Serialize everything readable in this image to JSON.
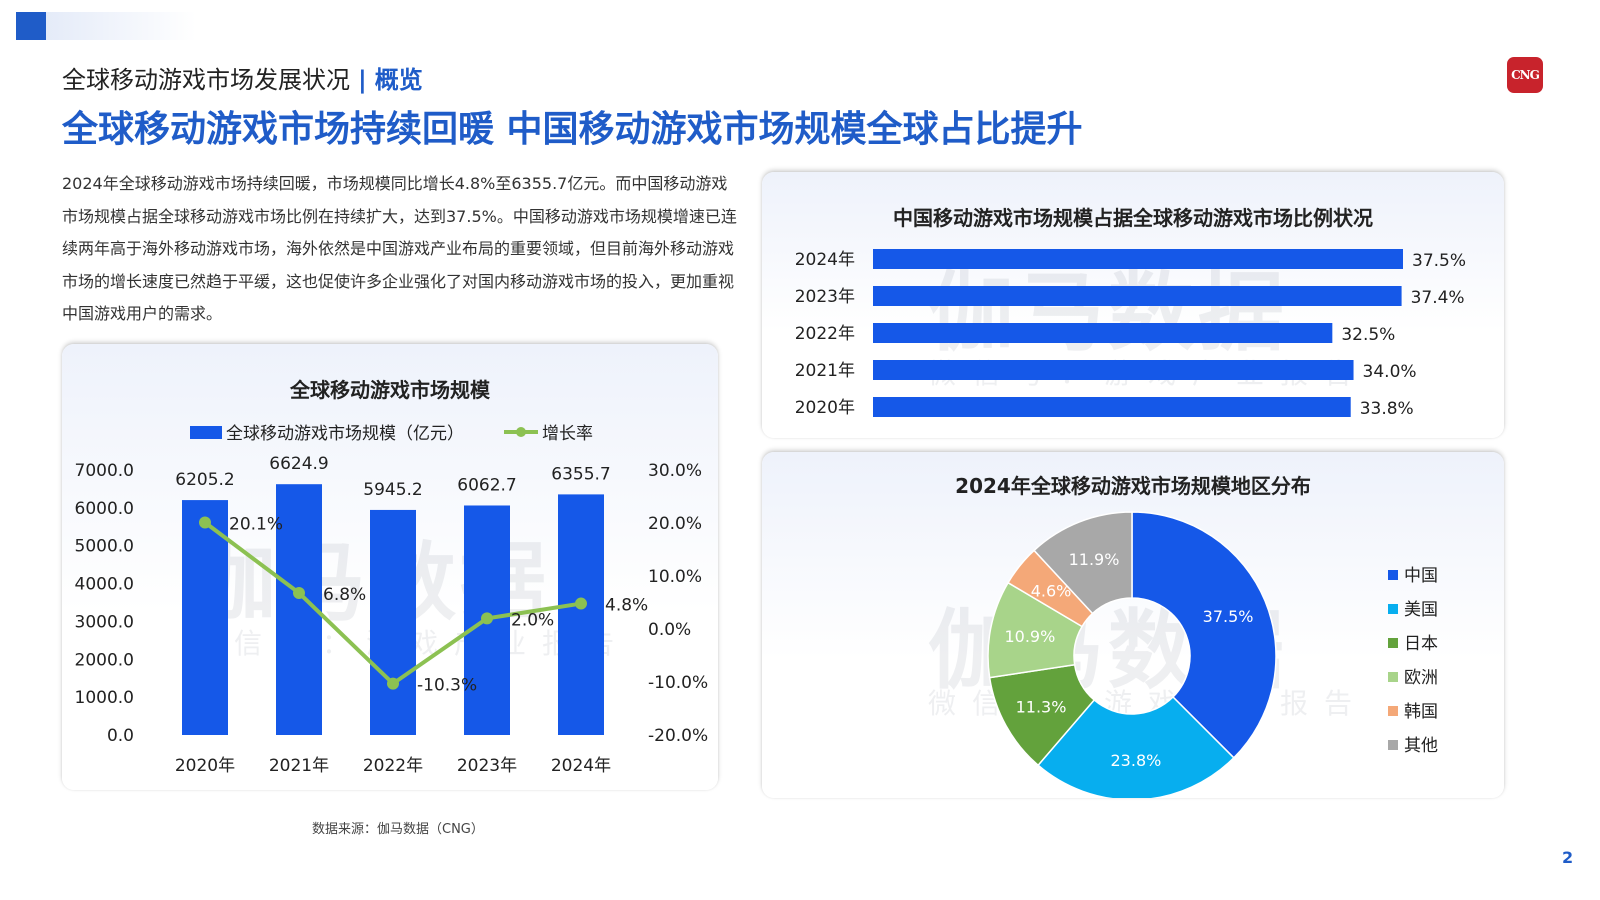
{
  "section": {
    "title": "全球移动游戏市场发展状况",
    "separator": "|",
    "subtitle": "概览"
  },
  "logo": {
    "text": "CNG"
  },
  "headline": "全球移动游戏市场持续回暖 中国移动游戏市场规模全球占比提升",
  "intro": "2024年全球移动游戏市场持续回暖，市场规模同比增长4.8%至6355.7亿元。而中国移动游戏市场规模占据全球移动游戏市场比例在持续扩大，达到37.5%。中国移动游戏市场规模增速已连续两年高于海外移动游戏市场，海外依然是中国游戏产业布局的重要领域，但目前海外移动游戏市场的增长速度已然趋于平缓，这也促使许多企业强化了对国内移动游戏市场的投入，更加重视中国游戏用户的需求。",
  "watermark": {
    "main": "伽马数据",
    "sub": "微信号：游戏产业报告"
  },
  "source": "数据来源：伽马数据（CNG）",
  "page_number": "2",
  "colors": {
    "bar_blue": "#1558e8",
    "line_green": "#8cc152",
    "accent": "#1f5cc8",
    "pie": [
      "#1558e8",
      "#07aeef",
      "#63a23c",
      "#a8d48a",
      "#f4a878",
      "#a8a8a8"
    ]
  },
  "chart_data": [
    {
      "type": "bar",
      "title": "全球移动游戏市场规模",
      "categories": [
        "2020年",
        "2021年",
        "2022年",
        "2023年",
        "2024年"
      ],
      "series": [
        {
          "name": "全球移动游戏市场规模（亿元）",
          "type": "bar",
          "axis": "left",
          "values": [
            6205.2,
            6624.9,
            5945.2,
            6062.7,
            6355.7
          ],
          "labels": [
            "6205.2",
            "6624.9",
            "5945.2",
            "6062.7",
            "6355.7"
          ]
        },
        {
          "name": "增长率",
          "type": "line",
          "axis": "right",
          "values": [
            20.1,
            6.8,
            -10.3,
            2.0,
            4.8
          ],
          "labels": [
            "20.1%",
            "6.8%",
            "-10.3%",
            "2.0%",
            "4.8%"
          ]
        }
      ],
      "ylim": [
        0,
        7000
      ],
      "y_ticks": [
        "7000.0",
        "6000.0",
        "5000.0",
        "4000.0",
        "3000.0",
        "2000.0",
        "1000.0",
        "0.0"
      ],
      "y2lim": [
        -20,
        30
      ],
      "y2_ticks": [
        "30.0%",
        "20.0%",
        "10.0%",
        "0.0%",
        "-10.0%",
        "-20.0%"
      ],
      "legend_position": "top",
      "grid": false
    },
    {
      "type": "bar",
      "orientation": "horizontal",
      "title": "中国移动游戏市场规模占据全球移动游戏市场比例状况",
      "categories": [
        "2024年",
        "2023年",
        "2022年",
        "2021年",
        "2020年"
      ],
      "values": [
        37.5,
        37.4,
        32.5,
        34.0,
        33.8
      ],
      "labels": [
        "37.5%",
        "37.4%",
        "32.5%",
        "34.0%",
        "33.8%"
      ],
      "grid": false
    },
    {
      "type": "pie",
      "title": "2024年全球移动游戏市场规模地区分布",
      "categories": [
        "中国",
        "美国",
        "日本",
        "欧洲",
        "韩国",
        "其他"
      ],
      "values": [
        37.5,
        23.8,
        11.3,
        10.9,
        4.6,
        11.9
      ],
      "labels": [
        "37.5%",
        "23.8%",
        "11.3%",
        "10.9%",
        "4.6%",
        "11.9%"
      ],
      "donut": true,
      "legend_position": "right"
    }
  ]
}
